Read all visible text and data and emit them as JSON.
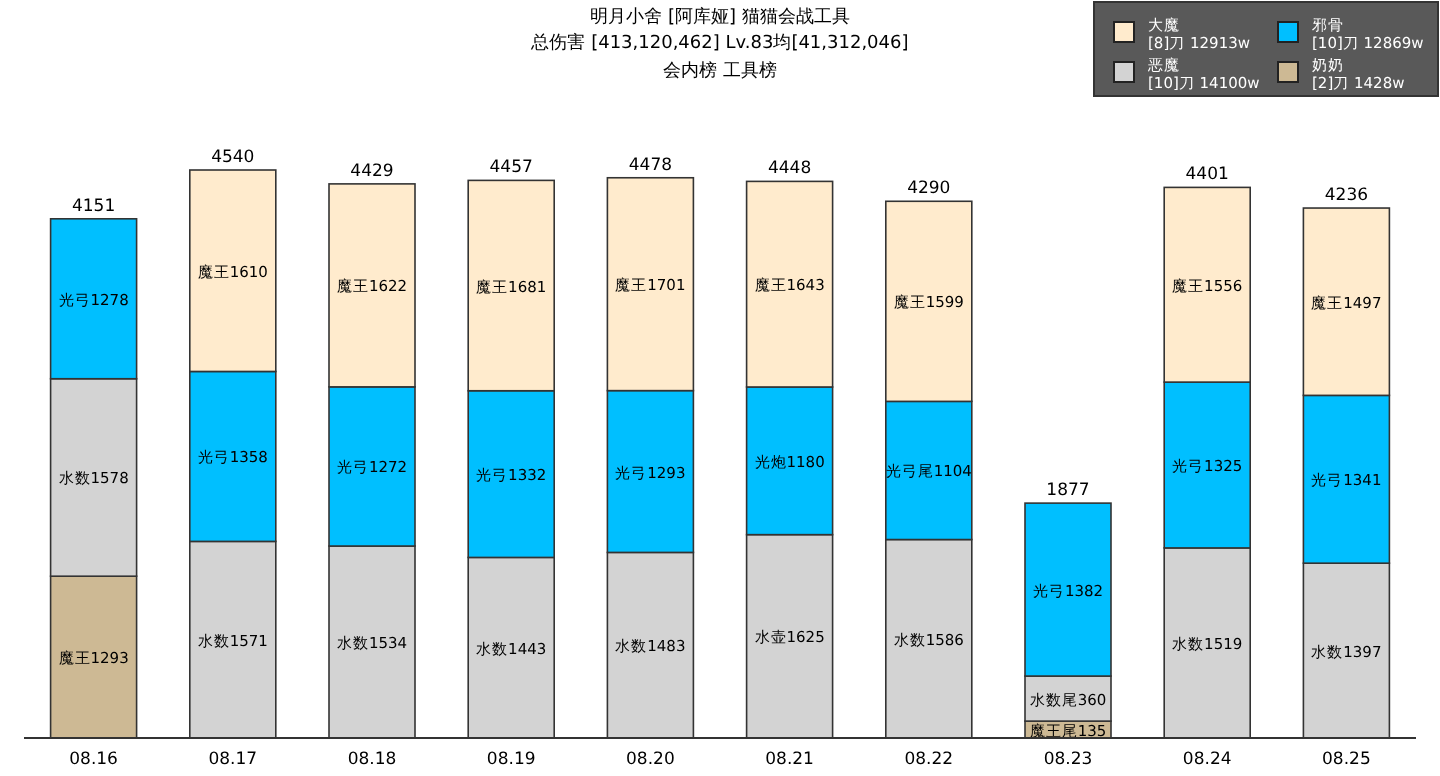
{
  "chart_data": {
    "type": "bar",
    "stacked": true,
    "title": "明月小舍 [阿库娅] 猫猫会战工具",
    "subtitle": "总伤害 [413,120,462] Lv.83均[41,312,046]",
    "annotations": [
      "会内榜 工具榜"
    ],
    "categories": [
      "08.16",
      "08.17",
      "08.18",
      "08.19",
      "08.20",
      "08.21",
      "08.22",
      "08.23",
      "08.24",
      "08.25"
    ],
    "series": [
      {
        "name": "奶奶\n[2]刀 1428w",
        "color": "#cdb994",
        "values": [
          1293,
          null,
          null,
          null,
          null,
          null,
          null,
          135,
          null,
          null
        ],
        "value_labels": [
          "魔王1293",
          null,
          null,
          null,
          null,
          null,
          null,
          "魔王尾135",
          null,
          null
        ]
      },
      {
        "name": "恶魔\n[10]刀 14100w",
        "color": "#d3d3d3",
        "values": [
          1578,
          1571,
          1534,
          1443,
          1483,
          1625,
          1586,
          360,
          1519,
          1397
        ],
        "value_labels": [
          "水数1578",
          "水数1571",
          "水数1534",
          "水数1443",
          "水数1483",
          "水壶1625",
          "水数1586",
          "水数尾360",
          "水数1519",
          "水数1397"
        ]
      },
      {
        "name": "邪骨\n[10]刀 12869w",
        "color": "#00bfff",
        "values": [
          1278,
          1358,
          1272,
          1332,
          1293,
          1180,
          1104,
          1382,
          1325,
          1341
        ],
        "value_labels": [
          "光弓1278",
          "光弓1358",
          "光弓1272",
          "光弓1332",
          "光弓1293",
          "光炮1180",
          "光弓尾1104",
          "光弓1382",
          "光弓1325",
          "光弓1341"
        ]
      },
      {
        "name": "大魔\n[8]刀 12913w",
        "color": "#ffebcd",
        "values": [
          null,
          1610,
          1622,
          1681,
          1701,
          1643,
          1599,
          null,
          1556,
          1497
        ],
        "value_labels": [
          null,
          "魔王1610",
          "魔王1622",
          "魔王1681",
          "魔王1701",
          "魔王1643",
          "魔王1599",
          null,
          "魔王1556",
          "魔王1497"
        ]
      }
    ],
    "totals": [
      "4151",
      "4540",
      "4429",
      "4457",
      "4478",
      "4448",
      "4290",
      "1877",
      "4401",
      "4236"
    ],
    "legend": "top right"
  }
}
